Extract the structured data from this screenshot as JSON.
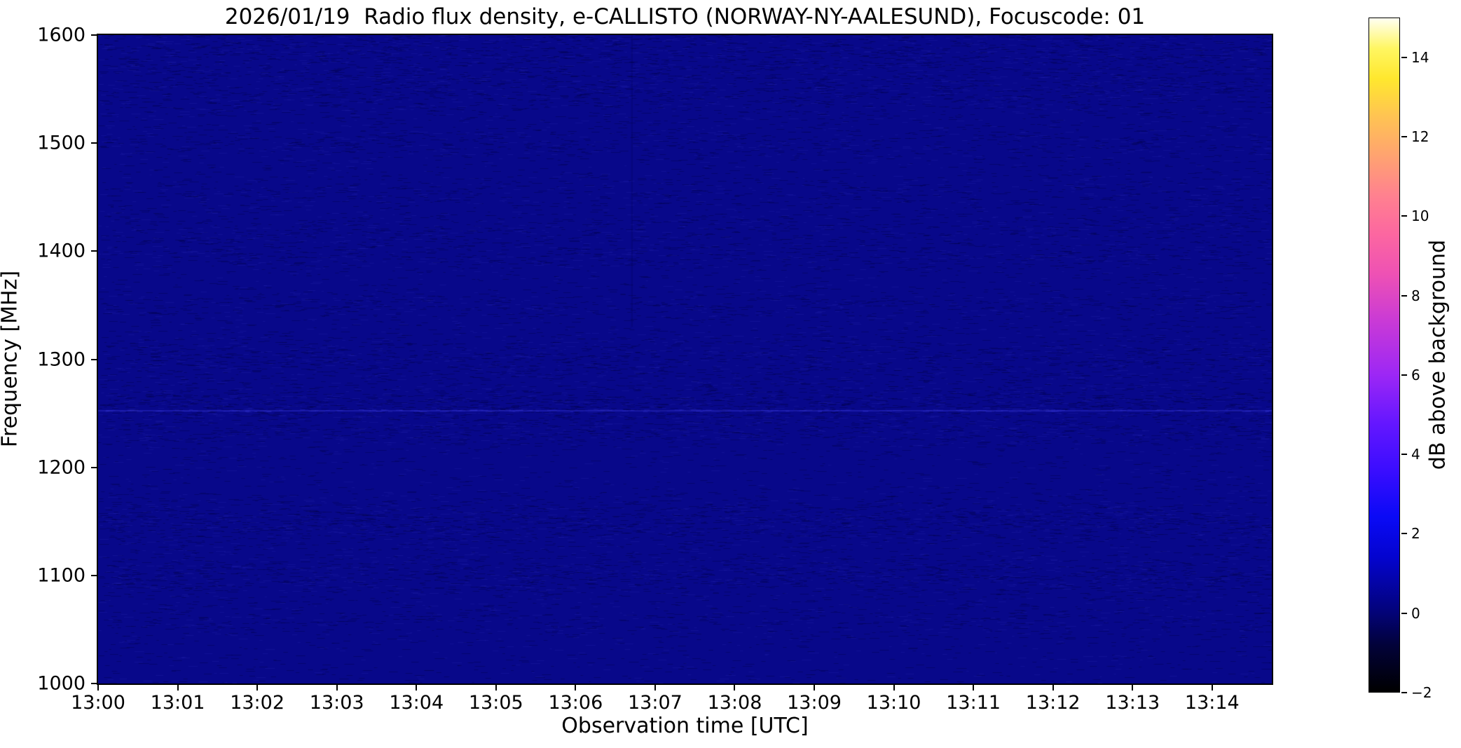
{
  "chart_data": {
    "type": "heatmap",
    "title": "2026/01/19  Radio flux density, e-CALLISTO (NORWAY-NY-AALESUND), Focuscode: 01",
    "xlabel": "Observation time [UTC]",
    "ylabel": "Frequency [MHz]",
    "x_tick_labels": [
      "13:00",
      "13:01",
      "13:02",
      "13:03",
      "13:04",
      "13:05",
      "13:06",
      "13:07",
      "13:08",
      "13:09",
      "13:10",
      "13:11",
      "13:12",
      "13:13",
      "13:14"
    ],
    "x_axis_minutes_span": 14.75,
    "ylim_mhz": [
      1000,
      1600
    ],
    "y_ticks_mhz": [
      1600,
      1500,
      1400,
      1300,
      1200,
      1100,
      1000
    ],
    "grid": false,
    "colorbar": {
      "label": "dB above background",
      "ticks_db": [
        -2,
        0,
        2,
        4,
        6,
        8,
        10,
        12,
        14
      ],
      "range_db": [
        -2,
        15
      ],
      "colormap_name": "gnuplot2",
      "gradient_stops": [
        {
          "at": 0.0,
          "color": "#000000"
        },
        {
          "at": 0.07,
          "color": "#02023a"
        },
        {
          "at": 0.118,
          "color": "#030378"
        },
        {
          "at": 0.2,
          "color": "#0404cf"
        },
        {
          "at": 0.26,
          "color": "#0a0af6"
        },
        {
          "at": 0.33,
          "color": "#3b0dff"
        },
        {
          "at": 0.4,
          "color": "#6517ff"
        },
        {
          "at": 0.47,
          "color": "#9c27f5"
        },
        {
          "at": 0.55,
          "color": "#c93ad6"
        },
        {
          "at": 0.62,
          "color": "#ee51b4"
        },
        {
          "at": 0.68,
          "color": "#fc67a0"
        },
        {
          "at": 0.735,
          "color": "#ff8090"
        },
        {
          "at": 0.8,
          "color": "#ffa56e"
        },
        {
          "at": 0.855,
          "color": "#ffc452"
        },
        {
          "at": 0.91,
          "color": "#ffe72e"
        },
        {
          "at": 0.955,
          "color": "#fff661"
        },
        {
          "at": 1.0,
          "color": "#fffff2"
        }
      ]
    },
    "background": {
      "base_color": "#08088a",
      "mean_level_db": 0.5,
      "bright_line_mhz": 1253,
      "vertical_streak_minute": 6.7,
      "noise_bands_mhz": [
        [
          1585,
          28,
          0.4
        ],
        [
          1545,
          18,
          0.3
        ],
        [
          1500,
          12,
          0.28
        ],
        [
          1455,
          14,
          0.2
        ],
        [
          1420,
          15,
          0.25
        ],
        [
          1395,
          10,
          0.28
        ],
        [
          1350,
          10,
          0.3
        ],
        [
          1300,
          20,
          0.38
        ],
        [
          1258,
          14,
          0.62
        ],
        [
          1232,
          10,
          0.4
        ],
        [
          1150,
          18,
          0.52
        ],
        [
          1100,
          16,
          0.45
        ],
        [
          1058,
          12,
          0.22
        ]
      ]
    }
  }
}
